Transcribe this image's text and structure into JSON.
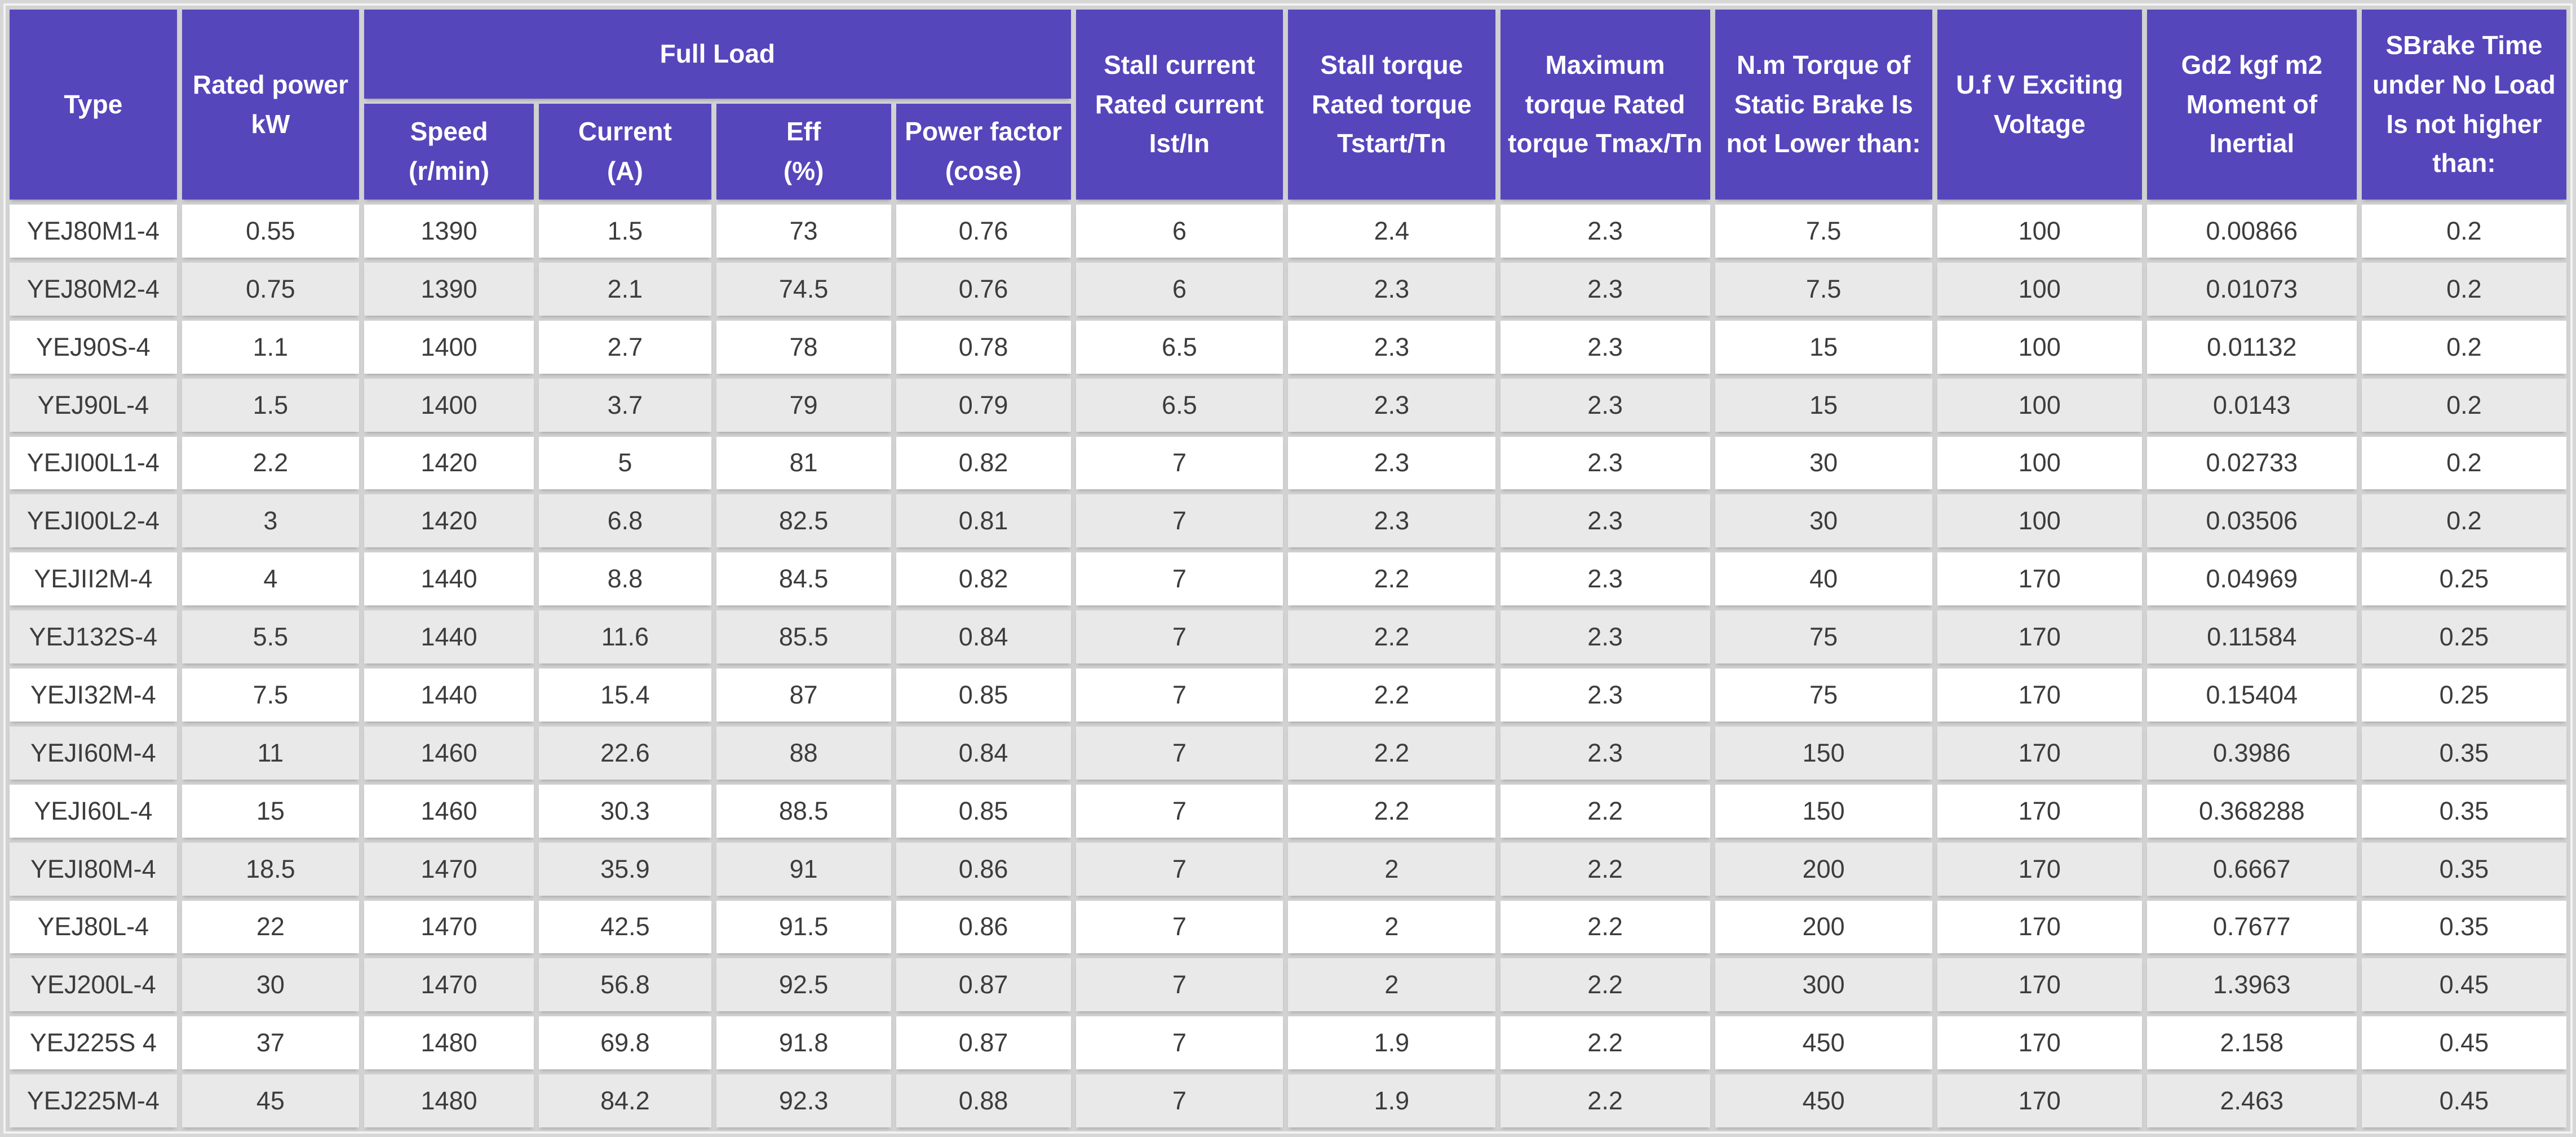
{
  "colors": {
    "header_bg": "#5546bc",
    "header_text": "#ffffff",
    "row_bg": "#ffffff",
    "row_alt_bg": "#e9e9e9",
    "grid": "#d2d2d2",
    "frame_bg": "#d7d7d7",
    "text": "#3c3c3c"
  },
  "header": {
    "type": "Type",
    "rated_power": "Rated power\nkW",
    "full_load": "Full Load",
    "speed": "Speed\n(r/min)",
    "current": "Current\n(A)",
    "eff": "Eff\n(%)",
    "power_factor": "Power factor\n(cose)",
    "stall_current": "Stall current\nRated current\nIst/In",
    "stall_torque": "Stall torque\nRated torque\nTstart/Tn",
    "max_torque": "Maximum\ntorque Rated\ntorque Tmax/Tn",
    "static_brake_torque": "N.m Torque of\nStatic Brake Is\nnot Lower than:",
    "exciting_voltage": "U.f V Exciting\nVoltage",
    "moment_of_inertia": "Gd2 kgf m2\nMoment of\nInertial",
    "brake_time": "SBrake Time\nunder No Load\nIs not higher\nthan:"
  },
  "column_keys": [
    "type",
    "rated-power",
    "speed",
    "current",
    "eff",
    "power-factor",
    "stall-current-ratio",
    "stall-torque-ratio",
    "max-torque-ratio",
    "static-brake-torque",
    "exciting-voltage",
    "moment-of-inertia",
    "brake-time"
  ],
  "rows": [
    [
      "YEJ80M1-4",
      "0.55",
      "1390",
      "1.5",
      "73",
      "0.76",
      "6",
      "2.4",
      "2.3",
      "7.5",
      "100",
      "0.00866",
      "0.2"
    ],
    [
      "YEJ80M2-4",
      "0.75",
      "1390",
      "2.1",
      "74.5",
      "0.76",
      "6",
      "2.3",
      "2.3",
      "7.5",
      "100",
      "0.01073",
      "0.2"
    ],
    [
      "YEJ90S-4",
      "1.1",
      "1400",
      "2.7",
      "78",
      "0.78",
      "6.5",
      "2.3",
      "2.3",
      "15",
      "100",
      "0.01132",
      "0.2"
    ],
    [
      "YEJ90L-4",
      "1.5",
      "1400",
      "3.7",
      "79",
      "0.79",
      "6.5",
      "2.3",
      "2.3",
      "15",
      "100",
      "0.0143",
      "0.2"
    ],
    [
      "YEJI00L1-4",
      "2.2",
      "1420",
      "5",
      "81",
      "0.82",
      "7",
      "2.3",
      "2.3",
      "30",
      "100",
      "0.02733",
      "0.2"
    ],
    [
      "YEJI00L2-4",
      "3",
      "1420",
      "6.8",
      "82.5",
      "0.81",
      "7",
      "2.3",
      "2.3",
      "30",
      "100",
      "0.03506",
      "0.2"
    ],
    [
      "YEJII2M-4",
      "4",
      "1440",
      "8.8",
      "84.5",
      "0.82",
      "7",
      "2.2",
      "2.3",
      "40",
      "170",
      "0.04969",
      "0.25"
    ],
    [
      "YEJ132S-4",
      "5.5",
      "1440",
      "11.6",
      "85.5",
      "0.84",
      "7",
      "2.2",
      "2.3",
      "75",
      "170",
      "0.11584",
      "0.25"
    ],
    [
      "YEJI32M-4",
      "7.5",
      "1440",
      "15.4",
      "87",
      "0.85",
      "7",
      "2.2",
      "2.3",
      "75",
      "170",
      "0.15404",
      "0.25"
    ],
    [
      "YEJI60M-4",
      "11",
      "1460",
      "22.6",
      "88",
      "0.84",
      "7",
      "2.2",
      "2.3",
      "150",
      "170",
      "0.3986",
      "0.35"
    ],
    [
      "YEJI60L-4",
      "15",
      "1460",
      "30.3",
      "88.5",
      "0.85",
      "7",
      "2.2",
      "2.2",
      "150",
      "170",
      "0.368288",
      "0.35"
    ],
    [
      "YEJI80M-4",
      "18.5",
      "1470",
      "35.9",
      "91",
      "0.86",
      "7",
      "2",
      "2.2",
      "200",
      "170",
      "0.6667",
      "0.35"
    ],
    [
      "YEJ80L-4",
      "22",
      "1470",
      "42.5",
      "91.5",
      "0.86",
      "7",
      "2",
      "2.2",
      "200",
      "170",
      "0.7677",
      "0.35"
    ],
    [
      "YEJ200L-4",
      "30",
      "1470",
      "56.8",
      "92.5",
      "0.87",
      "7",
      "2",
      "2.2",
      "300",
      "170",
      "1.3963",
      "0.45"
    ],
    [
      "YEJ225S 4",
      "37",
      "1480",
      "69.8",
      "91.8",
      "0.87",
      "7",
      "1.9",
      "2.2",
      "450",
      "170",
      "2.158",
      "0.45"
    ],
    [
      "YEJ225M-4",
      "45",
      "1480",
      "84.2",
      "92.3",
      "0.88",
      "7",
      "1.9",
      "2.2",
      "450",
      "170",
      "2.463",
      "0.45"
    ]
  ]
}
